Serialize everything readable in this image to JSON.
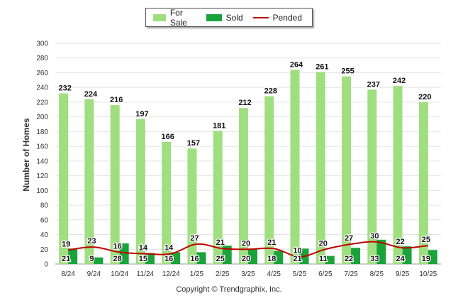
{
  "chart_data": {
    "type": "bar",
    "ylabel": "Number of Homes",
    "xlabel": "",
    "ylim": [
      0,
      300
    ],
    "ytick_step": 20,
    "grid": true,
    "categories": [
      "8/24",
      "9/24",
      "10/24",
      "11/24",
      "12/24",
      "1/25",
      "2/25",
      "3/25",
      "4/25",
      "5/25",
      "6/25",
      "7/25",
      "8/25",
      "9/25",
      "10/25"
    ],
    "series": [
      {
        "name": "For Sale",
        "kind": "bar",
        "color": "#9fdf7f",
        "values": [
          232,
          224,
          216,
          197,
          166,
          157,
          181,
          212,
          228,
          264,
          261,
          255,
          237,
          242,
          220
        ]
      },
      {
        "name": "Sold",
        "kind": "bar",
        "color": "#1aa33a",
        "values": [
          21,
          9,
          28,
          15,
          16,
          16,
          25,
          20,
          18,
          21,
          11,
          22,
          33,
          24,
          19
        ]
      },
      {
        "name": "Pended",
        "kind": "line",
        "color": "#c00000",
        "values": [
          19,
          23,
          16,
          14,
          14,
          27,
          21,
          20,
          21,
          10,
          20,
          27,
          30,
          22,
          25
        ]
      }
    ],
    "legend": "top-center"
  },
  "copyright": "Copyright © Trendgraphix, Inc."
}
